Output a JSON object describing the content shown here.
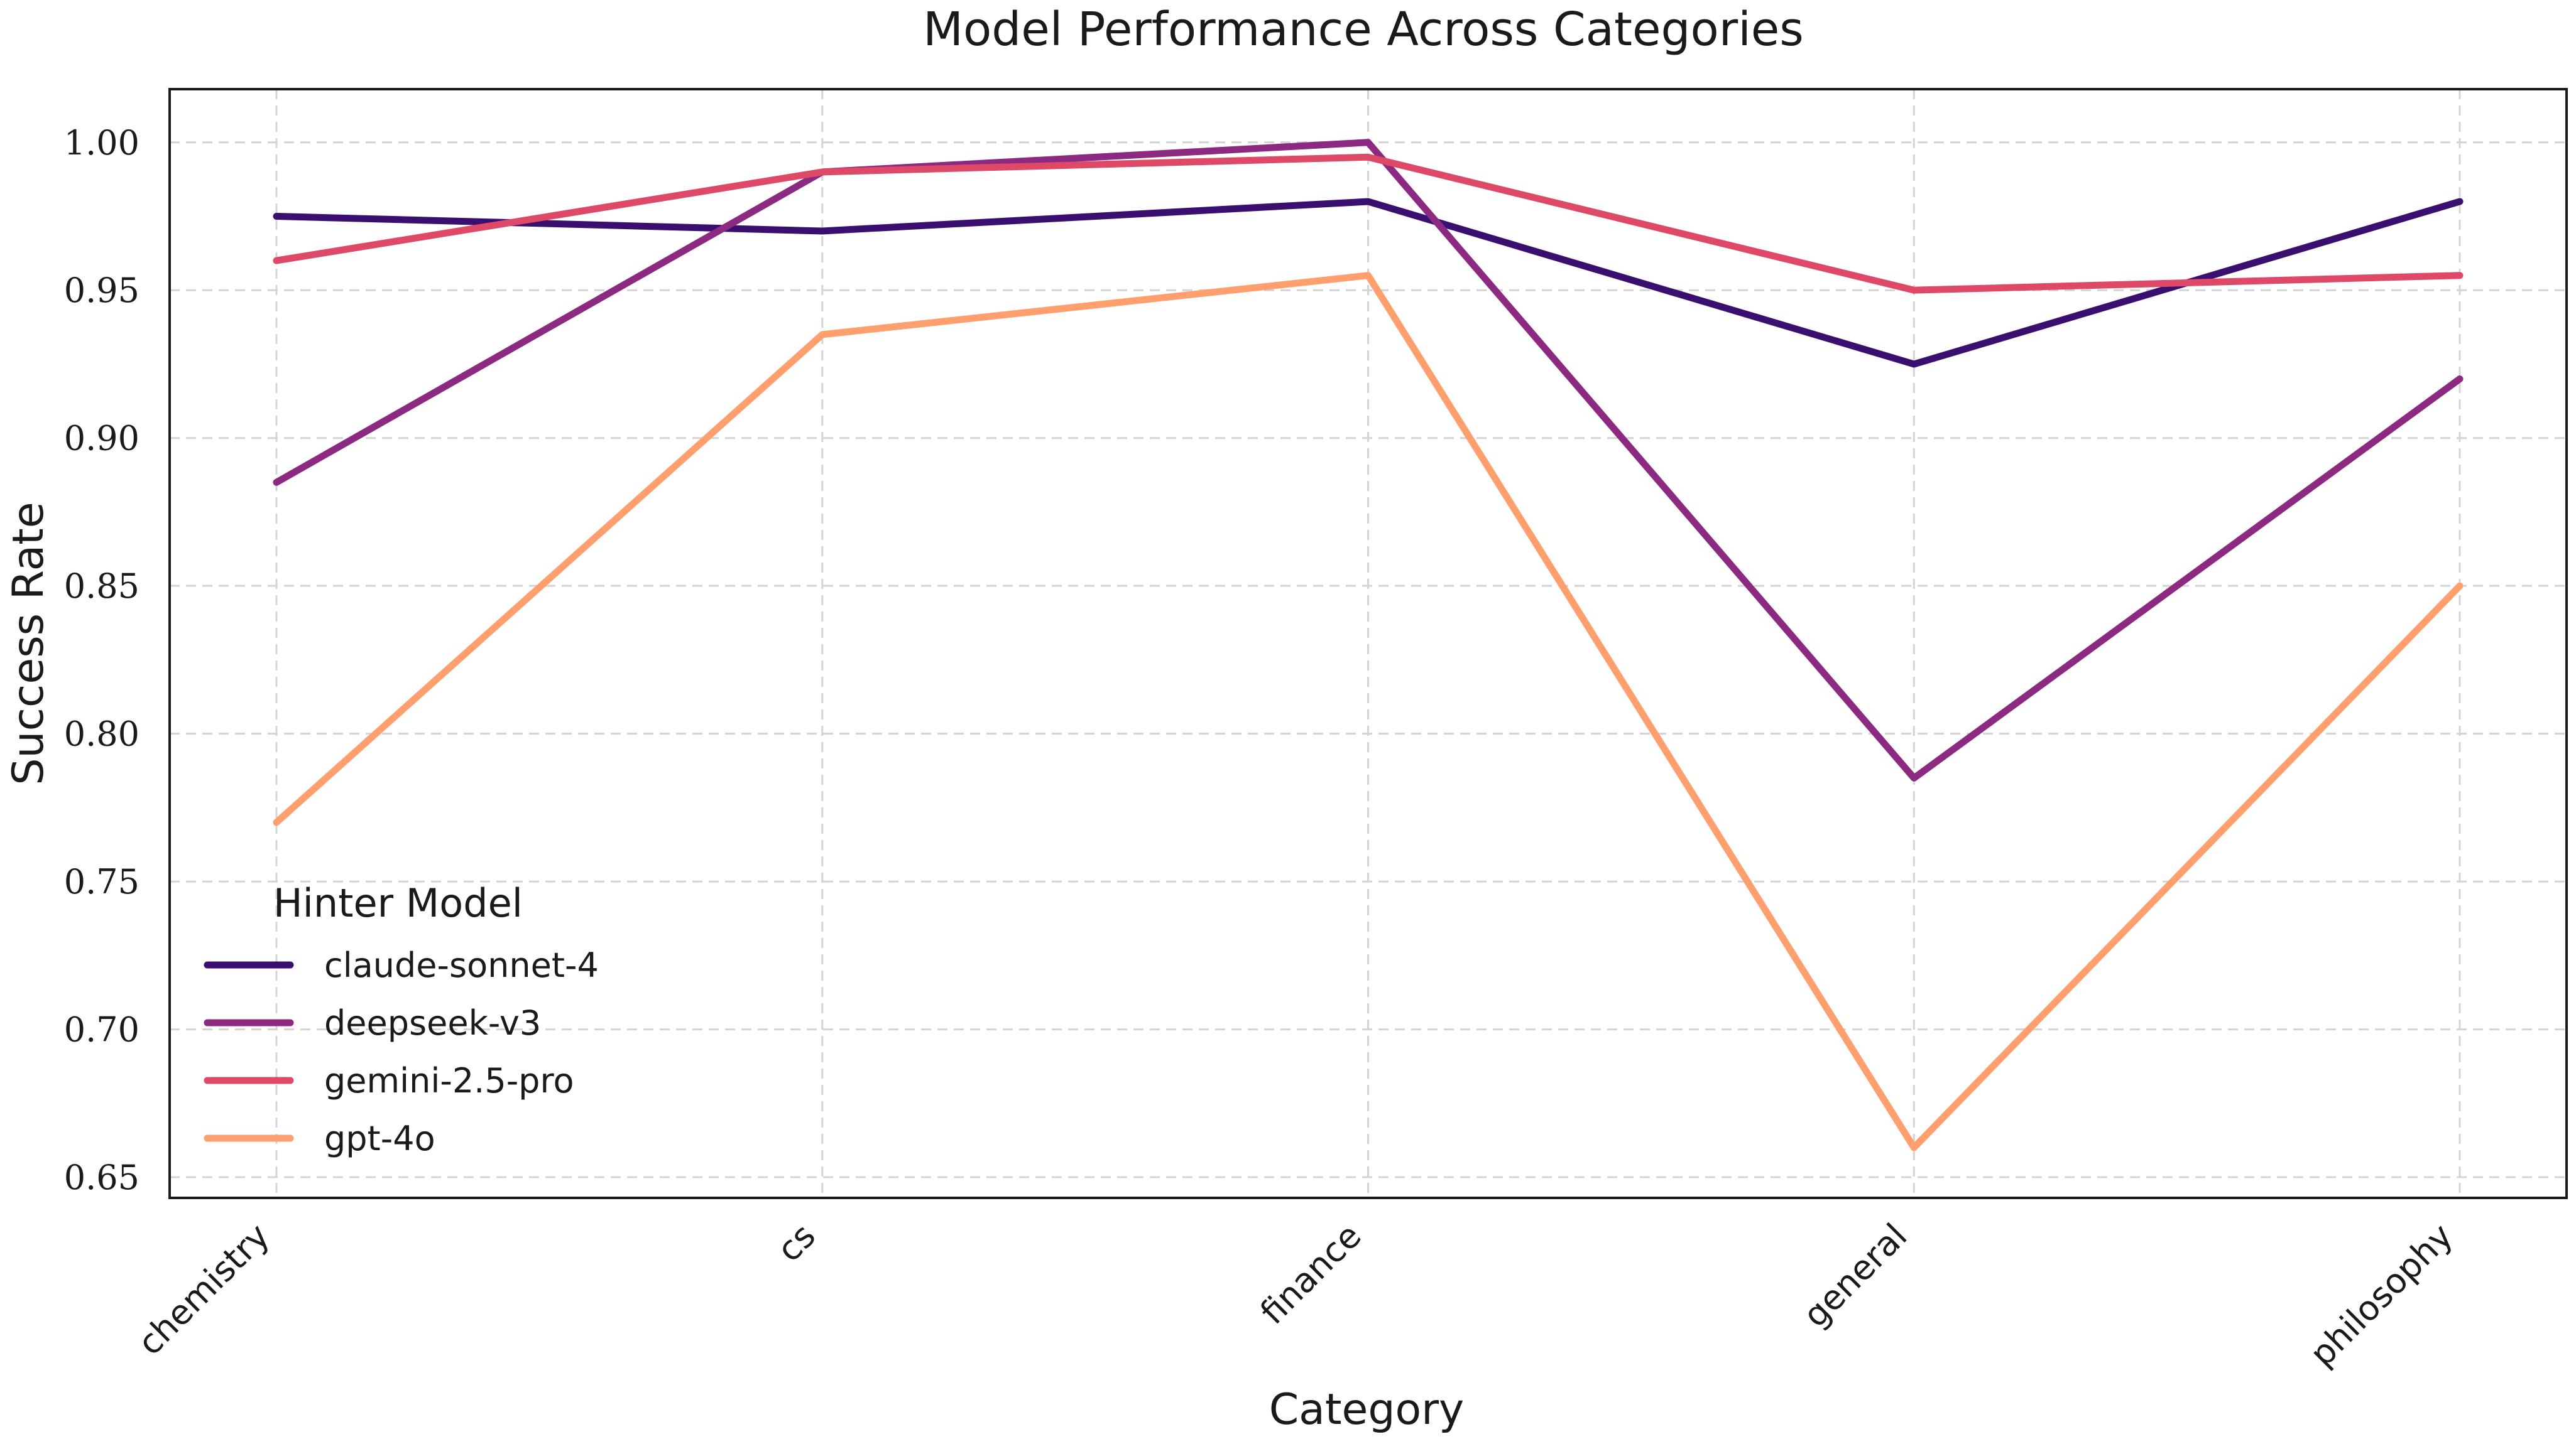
{
  "chart_data": {
    "type": "line",
    "title": "Model Performance Across Categories",
    "xlabel": "Category",
    "ylabel": "Success Rate",
    "categories": [
      "chemistry",
      "cs",
      "finance",
      "general",
      "philosophy"
    ],
    "ylim": [
      0.643,
      1.018
    ],
    "yticks": [
      0.65,
      0.7,
      0.75,
      0.8,
      0.85,
      0.9,
      0.95,
      1.0
    ],
    "ytick_labels": [
      "0.65",
      "0.70",
      "0.75",
      "0.80",
      "0.85",
      "0.90",
      "0.95",
      "1.00"
    ],
    "grid": true,
    "legend": {
      "title": "Hinter Model",
      "placement": "lower-left"
    },
    "series": [
      {
        "name": "claude-sonnet-4",
        "color": "#3b0f70",
        "values": [
          0.975,
          0.97,
          0.98,
          0.925,
          0.98
        ]
      },
      {
        "name": "deepseek-v3",
        "color": "#8c2981",
        "values": [
          0.885,
          0.99,
          1.0,
          0.785,
          0.92
        ]
      },
      {
        "name": "gemini-2.5-pro",
        "color": "#de4968",
        "values": [
          0.96,
          0.99,
          0.995,
          0.95,
          0.955
        ]
      },
      {
        "name": "gpt-4o",
        "color": "#fe9f6d",
        "values": [
          0.77,
          0.935,
          0.955,
          0.66,
          0.85
        ]
      }
    ]
  }
}
